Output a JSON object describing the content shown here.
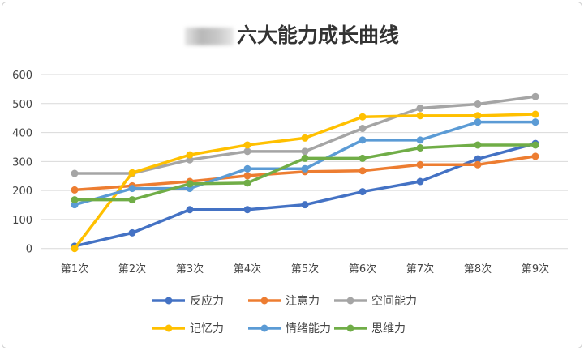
{
  "chart_data": {
    "type": "line",
    "title": "六大能力成长曲线",
    "categories": [
      "第1次",
      "第2次",
      "第3次",
      "第4次",
      "第5次",
      "第6次",
      "第7次",
      "第8次",
      "第9次"
    ],
    "ylim": [
      0,
      600
    ],
    "yticks": [
      0,
      100,
      200,
      300,
      400,
      500,
      600
    ],
    "grid": true,
    "legend_position": "bottom",
    "series": [
      {
        "name": "反应力",
        "color": "#4472C4",
        "values": [
          8,
          54,
          134,
          134,
          151,
          196,
          231,
          309,
          362
        ]
      },
      {
        "name": "注意力",
        "color": "#ED7D31",
        "values": [
          202,
          216,
          231,
          251,
          265,
          268,
          289,
          289,
          318
        ]
      },
      {
        "name": "空间能力",
        "color": "#A5A5A5",
        "values": [
          259,
          259,
          306,
          335,
          335,
          414,
          484,
          498,
          524
        ]
      },
      {
        "name": "记忆力",
        "color": "#FFC000",
        "values": [
          0,
          261,
          323,
          357,
          381,
          454,
          458,
          458,
          463
        ]
      },
      {
        "name": "情绪能力",
        "color": "#5B9BD5",
        "values": [
          151,
          207,
          207,
          275,
          275,
          374,
          374,
          436,
          436
        ]
      },
      {
        "name": "思维力",
        "color": "#70AD47",
        "values": [
          168,
          168,
          223,
          226,
          311,
          311,
          347,
          357,
          357
        ]
      }
    ]
  }
}
